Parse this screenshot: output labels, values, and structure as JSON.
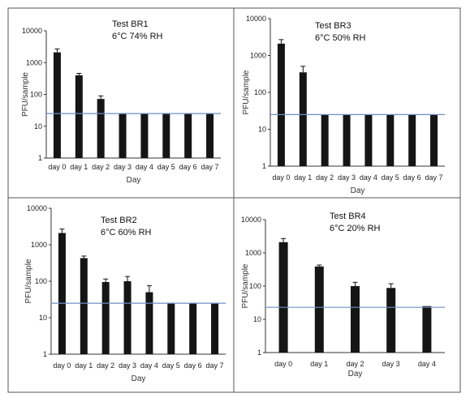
{
  "chart_data": [
    {
      "type": "bar",
      "title": "Test BR1",
      "subtitle": "6°C 74% RH",
      "xlabel": "Day",
      "ylabel": "PFU/sample",
      "yscale": "log",
      "ylim": [
        1,
        10000
      ],
      "yticks": [
        "10000",
        "1000",
        "100",
        "10",
        "1"
      ],
      "categories": [
        "day 0",
        "day 1",
        "day 2",
        "day 3",
        "day 4",
        "day 5",
        "day 6",
        "day 7"
      ],
      "values": [
        2100,
        400,
        72,
        25,
        25,
        25,
        25,
        25
      ],
      "error": [
        600,
        60,
        18,
        0,
        0,
        0,
        0,
        0
      ],
      "reference_line": 25,
      "grid": false,
      "bar_color": "#151515",
      "line_color": "#6f8fc4"
    },
    {
      "type": "bar",
      "title": "Test BR3",
      "subtitle": "6°C 50% RH",
      "xlabel": "Day",
      "ylabel": "PFU/sample",
      "yscale": "log",
      "ylim": [
        1,
        10000
      ],
      "yticks": [
        "10000",
        "1000",
        "100",
        "10",
        "1"
      ],
      "categories": [
        "day 0",
        "day 1",
        "day 2",
        "day 3",
        "day 4",
        "day 5",
        "day 6",
        "day 7"
      ],
      "values": [
        2100,
        350,
        25,
        25,
        25,
        25,
        25,
        25
      ],
      "error": [
        600,
        160,
        0,
        0,
        0,
        0,
        0,
        0
      ],
      "reference_line": 25,
      "grid": false,
      "bar_color": "#151515",
      "line_color": "#6f8fc4"
    },
    {
      "type": "bar",
      "title": "Test BR2",
      "subtitle": "6°C 60% RH",
      "xlabel": "Day",
      "ylabel": "PFU/sample",
      "yscale": "log",
      "ylim": [
        1,
        10000
      ],
      "yticks": [
        "10000",
        "1000",
        "100",
        "10",
        "1"
      ],
      "categories": [
        "day 0",
        "day 1",
        "day 2",
        "day 3",
        "day 4",
        "day 5",
        "day 6",
        "day 7"
      ],
      "values": [
        2100,
        430,
        95,
        100,
        50,
        25,
        25,
        25
      ],
      "error": [
        600,
        60,
        20,
        35,
        25,
        0,
        0,
        0
      ],
      "reference_line": 25,
      "grid": false,
      "bar_color": "#151515",
      "line_color": "#6f8fc4"
    },
    {
      "type": "bar",
      "title": "Test BR4",
      "subtitle": "6°C 20% RH",
      "xlabel": "Day",
      "ylabel": "PFU/sample",
      "yscale": "log",
      "ylim": [
        1,
        10000
      ],
      "yticks": [
        "10000",
        "1000",
        "100",
        "10",
        "1"
      ],
      "categories": [
        "day 0",
        "day 1",
        "day 2",
        "day 3",
        "day 4"
      ],
      "values": [
        2100,
        390,
        100,
        88,
        25
      ],
      "error": [
        600,
        40,
        30,
        30,
        0
      ],
      "reference_line": 23,
      "grid": false,
      "bar_color": "#151515",
      "line_color": "#6f8fc4"
    }
  ]
}
